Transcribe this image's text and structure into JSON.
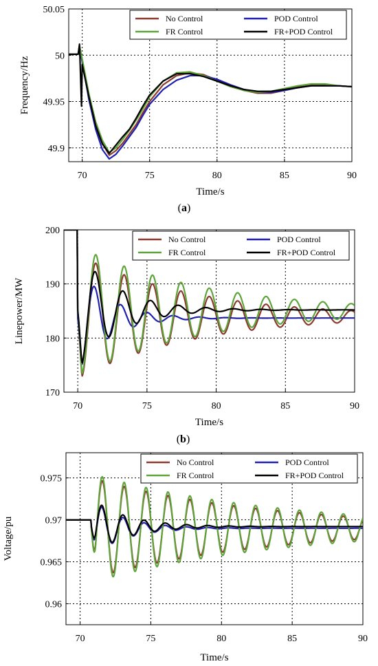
{
  "chart_data": [
    {
      "type": "line",
      "panel_label": "a",
      "xlabel": "Time/s",
      "ylabel": "Frequency/Hz",
      "xlim": [
        69,
        90
      ],
      "ylim": [
        49.885,
        50.05
      ],
      "xticks": [
        70,
        75,
        80,
        85,
        90
      ],
      "yticks": [
        49.9,
        49.95,
        50,
        50.05
      ],
      "xtick_labels": [
        "70",
        "75",
        "80",
        "85",
        "90"
      ],
      "ytick_labels": [
        "49.9",
        "49.95",
        "50",
        "50.05"
      ],
      "grid": true,
      "legend_position": "top-right",
      "series": [
        {
          "name": "No Control",
          "color": "#8B3A2E",
          "x": [
            69.0,
            69.7,
            69.8,
            70.0,
            70.5,
            71.0,
            71.5,
            72.0,
            72.5,
            73.0,
            73.5,
            74.0,
            74.5,
            75.0,
            76.0,
            77.0,
            78.0,
            79.0,
            80.0,
            81.0,
            82.0,
            83.0,
            84.0,
            85.0,
            86.0,
            87.0,
            88.0,
            89.0,
            90.0
          ],
          "y": [
            50.001,
            50.001,
            50.01,
            49.995,
            49.955,
            49.925,
            49.905,
            49.892,
            49.897,
            49.905,
            49.915,
            49.925,
            49.938,
            49.95,
            49.968,
            49.978,
            49.981,
            49.979,
            49.973,
            49.967,
            49.962,
            49.959,
            49.959,
            49.962,
            49.966,
            49.968,
            49.968,
            49.967,
            49.966
          ]
        },
        {
          "name": "POD Control",
          "color": "#1F1FB0",
          "x": [
            69.0,
            69.7,
            69.8,
            70.0,
            70.5,
            71.0,
            71.5,
            72.0,
            72.5,
            73.0,
            73.5,
            74.0,
            74.5,
            75.0,
            76.0,
            77.0,
            78.0,
            79.0,
            80.0,
            81.0,
            82.0,
            83.0,
            84.0,
            85.0,
            86.0,
            87.0,
            88.0,
            89.0,
            90.0
          ],
          "y": [
            50.001,
            50.001,
            50.009,
            49.993,
            49.952,
            49.92,
            49.898,
            49.888,
            49.893,
            49.902,
            49.912,
            49.922,
            49.935,
            49.947,
            49.963,
            49.973,
            49.978,
            49.978,
            49.974,
            49.968,
            49.963,
            49.96,
            49.96,
            49.962,
            49.965,
            49.967,
            49.967,
            49.967,
            49.966
          ]
        },
        {
          "name": "FR Control",
          "color": "#5FA33B",
          "x": [
            69.0,
            69.7,
            69.8,
            70.0,
            70.5,
            71.0,
            71.5,
            72.0,
            72.5,
            73.0,
            73.5,
            74.0,
            74.5,
            75.0,
            76.0,
            77.0,
            78.0,
            79.0,
            80.0,
            81.0,
            82.0,
            83.0,
            84.0,
            85.0,
            86.0,
            87.0,
            88.0,
            89.0,
            90.0
          ],
          "y": [
            50.001,
            50.001,
            50.01,
            49.996,
            49.958,
            49.928,
            49.908,
            49.895,
            49.9,
            49.909,
            49.919,
            49.93,
            49.942,
            49.955,
            49.972,
            49.981,
            49.982,
            49.978,
            49.972,
            49.966,
            49.962,
            49.96,
            49.961,
            49.964,
            49.967,
            49.969,
            49.969,
            49.967,
            49.966
          ]
        },
        {
          "name": "FR+POD Control",
          "color": "#000000",
          "x": [
            69.0,
            69.7,
            69.8,
            69.95,
            70.0,
            70.5,
            71.0,
            71.5,
            72.0,
            72.5,
            73.0,
            73.5,
            74.0,
            74.5,
            75.0,
            76.0,
            77.0,
            78.0,
            79.0,
            80.0,
            81.0,
            82.0,
            83.0,
            84.0,
            85.0,
            86.0,
            87.0,
            88.0,
            89.0,
            90.0
          ],
          "y": [
            50.001,
            50.001,
            50.012,
            49.945,
            49.99,
            49.955,
            49.924,
            49.904,
            49.894,
            49.903,
            49.912,
            49.92,
            49.932,
            49.945,
            49.957,
            49.972,
            49.98,
            49.98,
            49.977,
            49.972,
            49.967,
            49.963,
            49.961,
            49.961,
            49.963,
            49.965,
            49.967,
            49.967,
            49.967,
            49.966
          ]
        }
      ]
    },
    {
      "type": "line",
      "panel_label": "b",
      "xlabel": "Time/s",
      "ylabel": "Linepower/MW",
      "xlim": [
        69,
        90
      ],
      "ylim": [
        170,
        200
      ],
      "xticks": [
        70,
        75,
        80,
        85,
        90
      ],
      "yticks": [
        170,
        180,
        190,
        200
      ],
      "xtick_labels": [
        "70",
        "75",
        "80",
        "85",
        "90"
      ],
      "ytick_labels": [
        "170",
        "180",
        "190",
        "200"
      ],
      "grid": true,
      "legend_position": "top-right",
      "series": [
        {
          "name": "No Control",
          "color": "#8B3A2E",
          "osc": {
            "start": 70,
            "base": 184,
            "amp": 11.5,
            "decay": 0.12,
            "period": 2.05,
            "phase": 0.7,
            "pre": 200
          }
        },
        {
          "name": "POD Control",
          "color": "#1F1FB0",
          "osc": {
            "start": 70,
            "base": 183.7,
            "amp": 10.0,
            "decay": 0.45,
            "period": 1.9,
            "phase": 0.7,
            "pre": 200
          }
        },
        {
          "name": "FR Control",
          "color": "#5FA33B",
          "osc": {
            "start": 70,
            "base": 185,
            "amp": 12.0,
            "decay": 0.11,
            "period": 2.05,
            "phase": 0.7,
            "pre": 200
          }
        },
        {
          "name": "FR+POD Control",
          "color": "#000000",
          "osc": {
            "start": 70,
            "base": 185.2,
            "amp": 11.0,
            "decay": 0.35,
            "period": 2.0,
            "phase": 0.7,
            "pre": 200
          }
        }
      ]
    },
    {
      "type": "line",
      "panel_label": "",
      "xlabel": "Time/s",
      "ylabel": "Voltage/pu",
      "xlim": [
        69,
        90
      ],
      "ylim": [
        0.9575,
        0.978
      ],
      "xticks": [
        70,
        75,
        80,
        85,
        90
      ],
      "yticks": [
        0.96,
        0.965,
        0.97,
        0.975
      ],
      "xtick_labels": [
        "70",
        "75",
        "80",
        "85",
        "90"
      ],
      "ytick_labels": [
        "0.96",
        "0.965",
        "0.97",
        "0.975"
      ],
      "grid": true,
      "legend_position": "top-right",
      "series": [
        {
          "name": "No Control",
          "color": "#8B3A2E",
          "osc": {
            "start": 70.8,
            "base": 0.969,
            "amp": 0.006,
            "decay": 0.08,
            "period": 1.55,
            "phase": 1.6,
            "pre": 0.97
          }
        },
        {
          "name": "POD Control",
          "color": "#1F1FB0",
          "osc": {
            "start": 70.8,
            "base": 0.969,
            "amp": 0.0035,
            "decay": 0.45,
            "period": 1.5,
            "phase": 1.6,
            "pre": 0.97
          }
        },
        {
          "name": "FR Control",
          "color": "#5FA33B",
          "osc": {
            "start": 70.8,
            "base": 0.969,
            "amp": 0.0065,
            "decay": 0.075,
            "period": 1.55,
            "phase": 1.6,
            "pre": 0.97
          }
        },
        {
          "name": "FR+POD Control",
          "color": "#000000",
          "osc": {
            "start": 70.8,
            "base": 0.9692,
            "amp": 0.0034,
            "decay": 0.4,
            "period": 1.5,
            "phase": 1.6,
            "pre": 0.97
          }
        }
      ]
    }
  ]
}
